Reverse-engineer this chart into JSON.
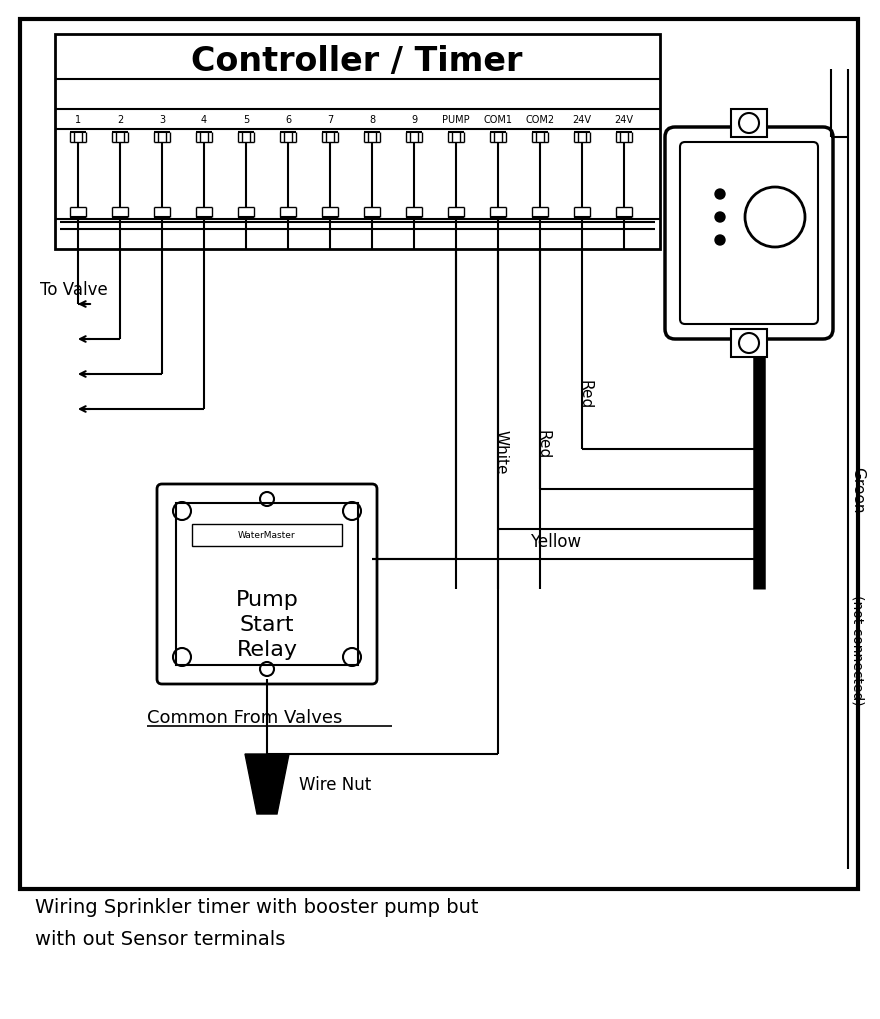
{
  "title": "Controller / Timer",
  "caption_line1": "Wiring Sprinkler timer with booster pump but",
  "caption_line2": "with out Sensor terminals",
  "terminal_labels": [
    "1",
    "2",
    "3",
    "4",
    "5",
    "6",
    "7",
    "8",
    "9",
    "PUMP",
    "COM1",
    "COM2",
    "24V",
    "24V"
  ],
  "to_valve_label": "To Valve",
  "pump_relay_label1": "Pump",
  "pump_relay_label2": "Start",
  "pump_relay_label3": "Relay",
  "watermaster_label": "WaterMaster",
  "common_label": "Common From Valves",
  "wire_nut_label": "Wire Nut",
  "white_label": "White",
  "red1_label": "Red",
  "red2_label": "Red",
  "yellow_label": "Yellow",
  "green_label": "Green",
  "not_connected_label": "(not connected)",
  "bg_color": "#ffffff"
}
